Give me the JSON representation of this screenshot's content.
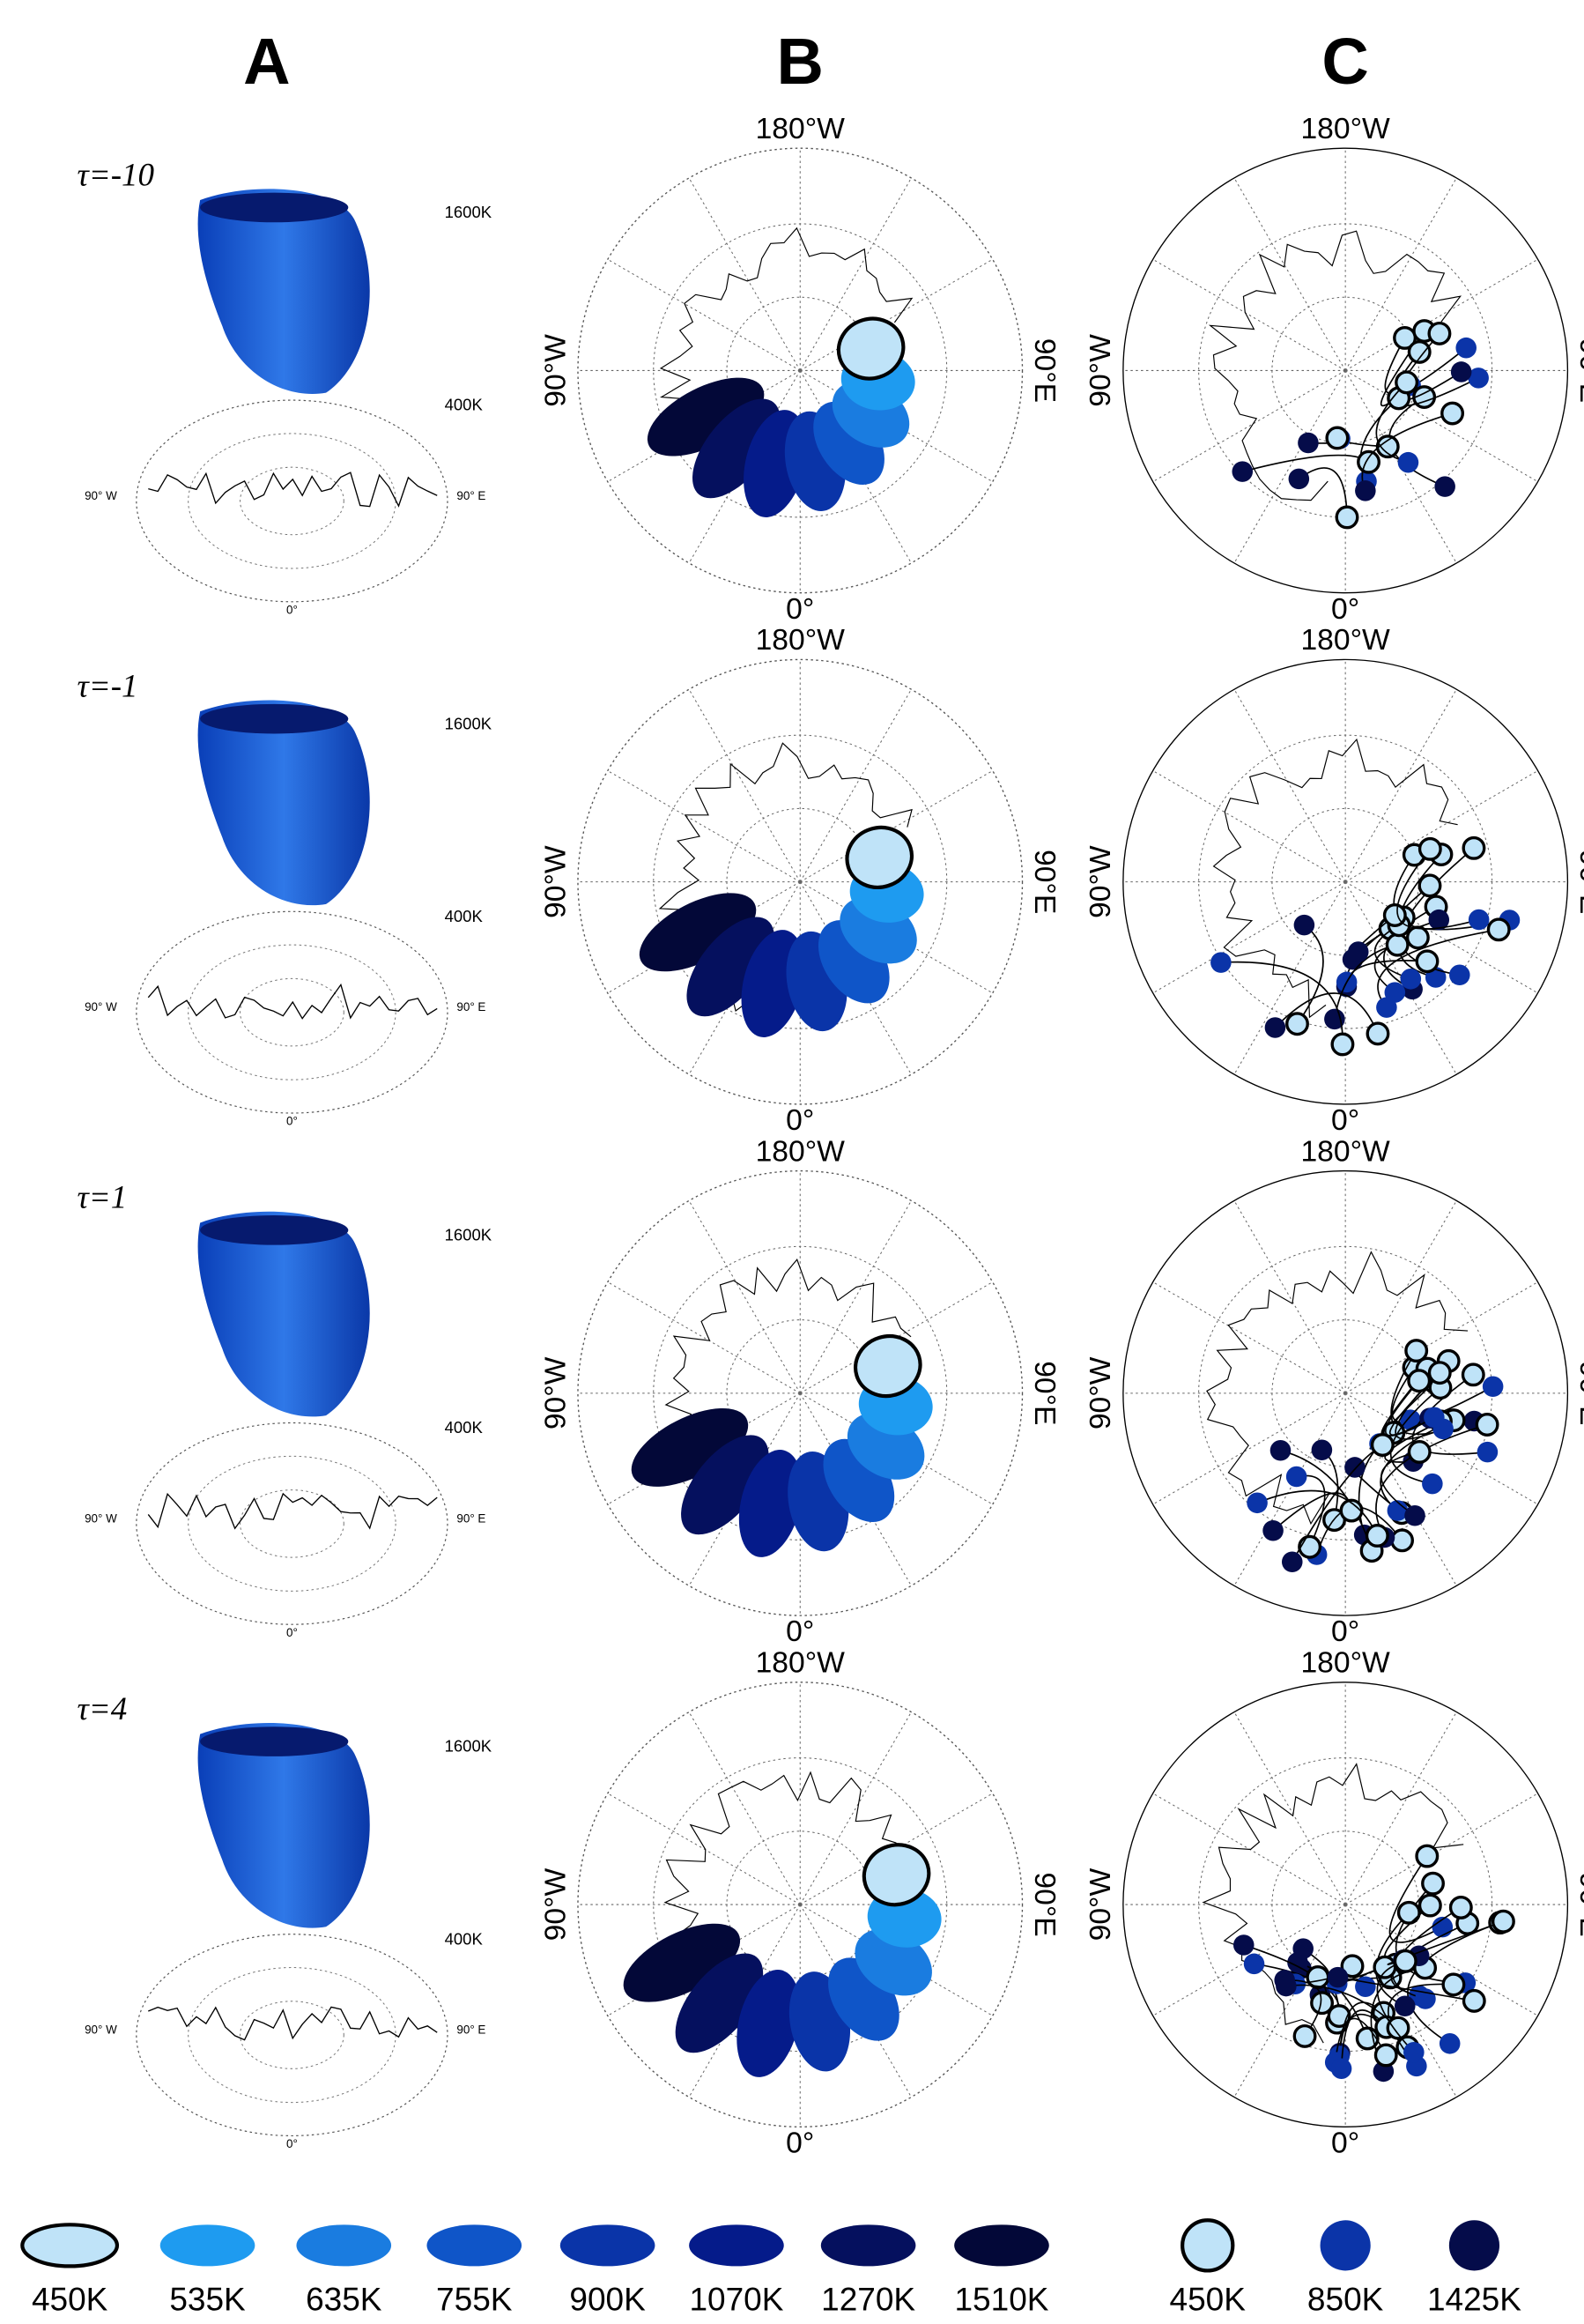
{
  "column_headers": [
    "A",
    "B",
    "C"
  ],
  "rows": [
    {
      "tau": "τ=-10"
    },
    {
      "tau": "τ=-1"
    },
    {
      "tau": "τ=1"
    },
    {
      "tau": "τ=4"
    }
  ],
  "panel_a_labels": {
    "top": "1600K",
    "bottom": "400K",
    "west": "90° W",
    "east": "90° E",
    "south": "0°"
  },
  "map_labels": {
    "north": "180°W",
    "west": "90°W",
    "east": "90°E",
    "south": "0°"
  },
  "legend_b": [
    {
      "label": "450K",
      "color": "#bfe3f8"
    },
    {
      "label": "535K",
      "color": "#1e9bf0"
    },
    {
      "label": "635K",
      "color": "#1a7ce0"
    },
    {
      "label": "755K",
      "color": "#0f55c8"
    },
    {
      "label": "900K",
      "color": "#0a34a8"
    },
    {
      "label": "1070K",
      "color": "#051b8a"
    },
    {
      "label": "1270K",
      "color": "#05105e"
    },
    {
      "label": "1510K",
      "color": "#030838"
    }
  ],
  "legend_c": [
    {
      "label": "450K",
      "color": "#bfe3f8"
    },
    {
      "label": "850K",
      "color": "#0b34a8"
    },
    {
      "label": "1425K",
      "color": "#050c4a"
    }
  ]
}
